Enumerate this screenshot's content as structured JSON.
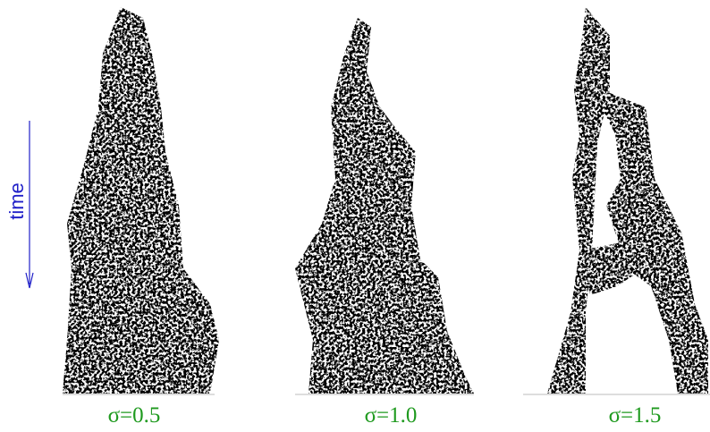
{
  "axis_label": "time",
  "panels": [
    {
      "label": "σ=0.5"
    },
    {
      "label": "σ=1.0"
    },
    {
      "label": "σ=1.5"
    }
  ]
}
